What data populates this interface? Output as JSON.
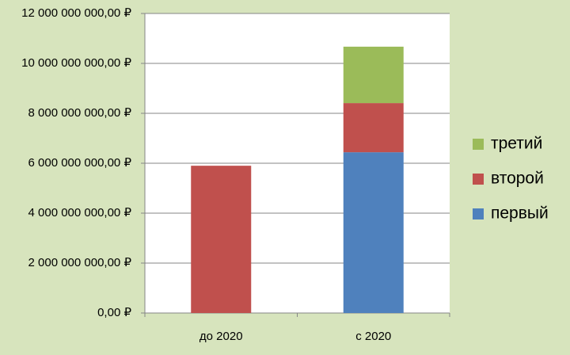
{
  "chart_data": {
    "type": "stacked-bar",
    "categories": [
      "до 2020",
      "с 2020"
    ],
    "series": [
      {
        "name": "первый",
        "color": "#4f81bd",
        "values": [
          null,
          6440000000
        ]
      },
      {
        "name": "второй",
        "color": "#c0504d",
        "values": [
          5900000000,
          1970000000
        ]
      },
      {
        "name": "третий",
        "color": "#9bbb59",
        "values": [
          null,
          2260000000
        ]
      }
    ],
    "ylim": [
      0,
      12000000000
    ],
    "yticks": [
      {
        "value": 0,
        "label": "0,00 ₽"
      },
      {
        "value": 2000000000,
        "label": "2 000 000 000,00 ₽"
      },
      {
        "value": 4000000000,
        "label": "4 000 000 000,00 ₽"
      },
      {
        "value": 6000000000,
        "label": "6 000 000 000,00 ₽"
      },
      {
        "value": 8000000000,
        "label": "8 000 000 000,00 ₽"
      },
      {
        "value": 10000000000,
        "label": "10 000 000 000,00 ₽"
      },
      {
        "value": 12000000000,
        "label": "12 000 000 000,00 ₽"
      }
    ],
    "grid": true,
    "legend": "right"
  }
}
